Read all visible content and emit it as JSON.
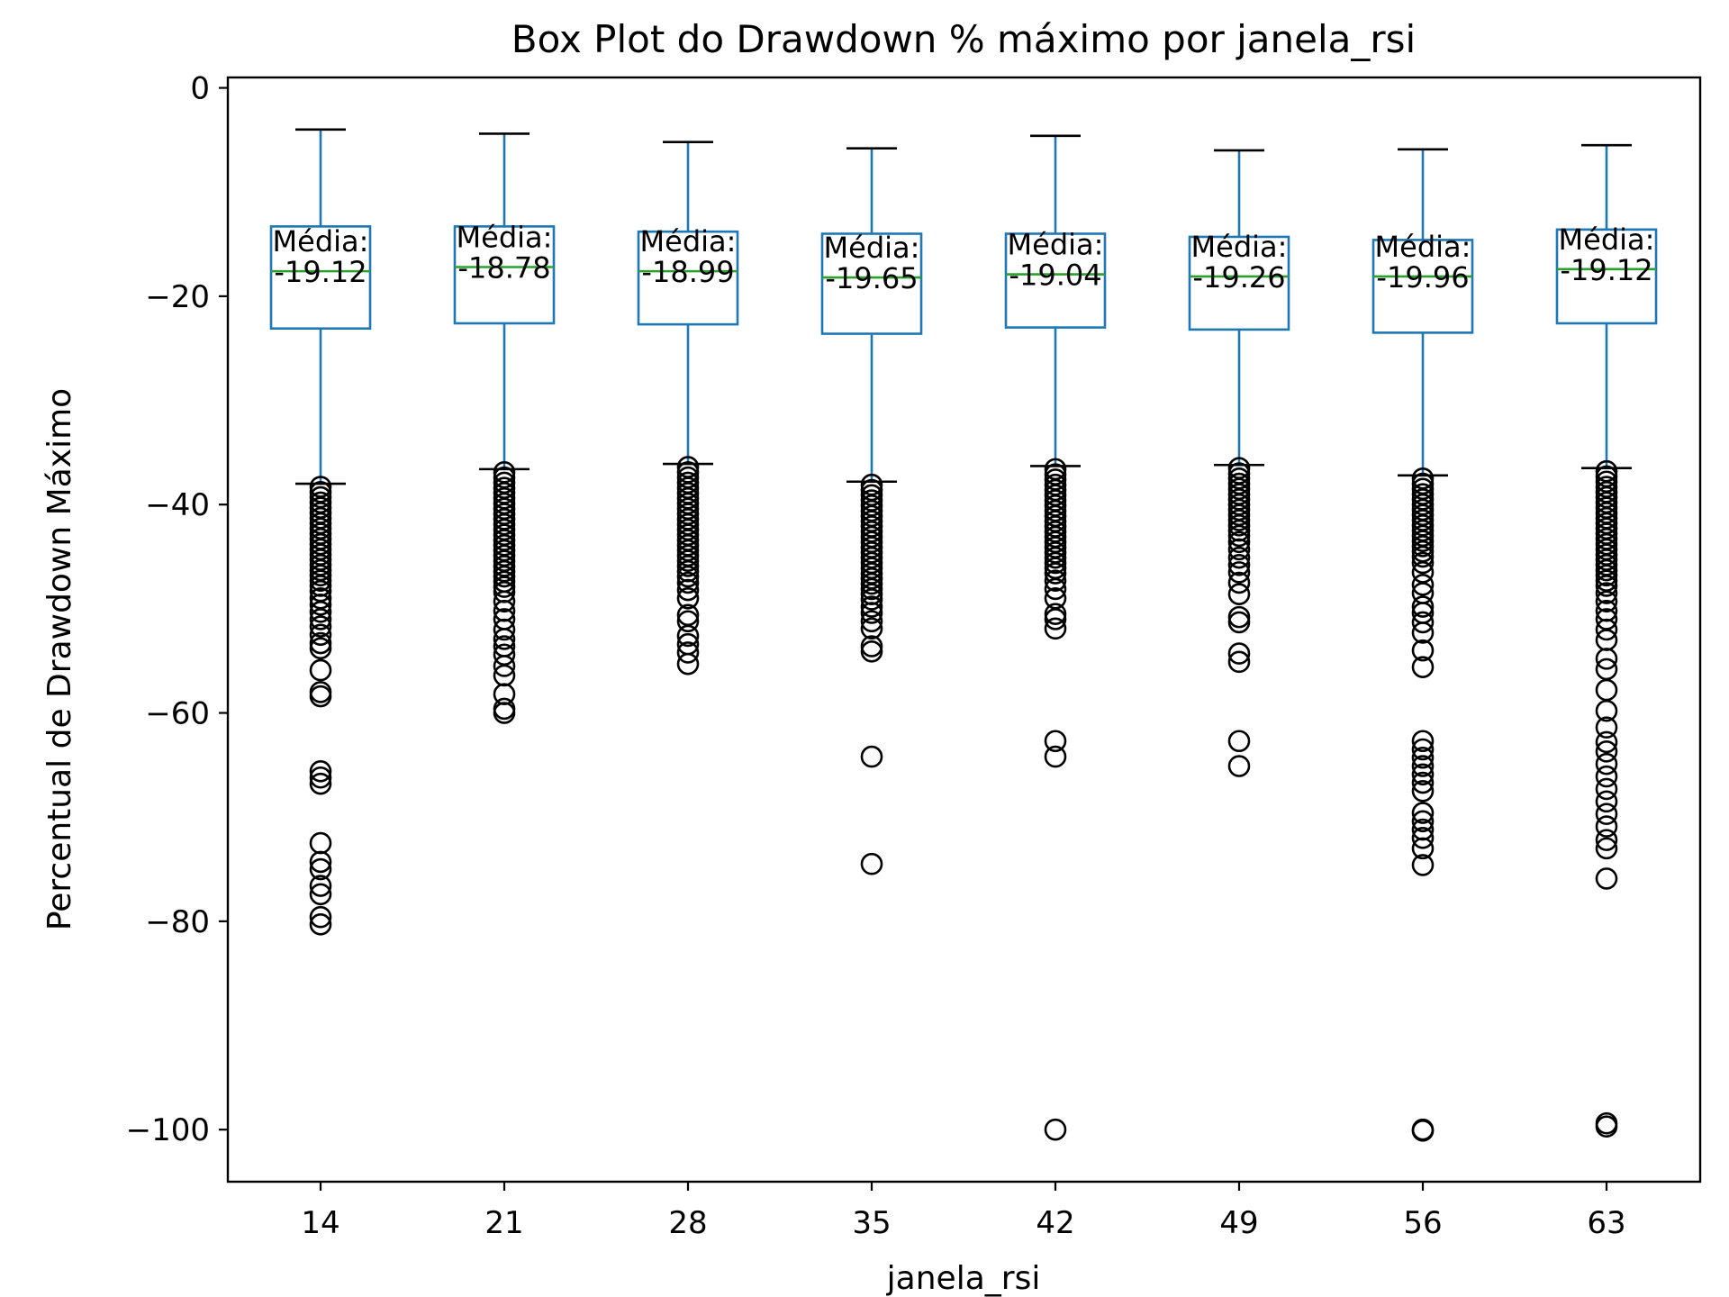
{
  "chart_data": {
    "type": "box",
    "title": "Box Plot do Drawdown % máximo por janela_rsi",
    "xlabel": "janela_rsi",
    "ylabel": "Percentual de Drawdown Máximo",
    "ylim": [
      -105,
      1
    ],
    "yticks": [
      0,
      -20,
      -40,
      -60,
      -80,
      -100
    ],
    "yticklabels": [
      "0",
      "−20",
      "−40",
      "−60",
      "−80",
      "−100"
    ],
    "grid": false,
    "categories": [
      "14",
      "21",
      "28",
      "35",
      "42",
      "49",
      "56",
      "63"
    ],
    "mean_prefix": "Média:",
    "colors": {
      "box": "#1f77b4",
      "median": "#2ca02c",
      "whisker_cap": "#000000",
      "flier": "#000000"
    },
    "boxes": [
      {
        "category": "14",
        "whisker_high": -4.0,
        "q3": -13.3,
        "median": -17.6,
        "q1": -23.1,
        "whisker_low": -38.0,
        "mean_label": "-19.12",
        "outliers": [
          -38.3,
          -38.8,
          -39.3,
          -39.8,
          -40.3,
          -40.8,
          -41.3,
          -41.8,
          -42.3,
          -42.8,
          -43.3,
          -43.8,
          -44.3,
          -44.8,
          -45.3,
          -45.8,
          -46.3,
          -46.8,
          -47.3,
          -47.8,
          -48.3,
          -49.0,
          -49.6,
          -50.3,
          -51.0,
          -51.7,
          -52.5,
          -53.3,
          -53.8,
          -55.9,
          -58.0,
          -58.4,
          -65.6,
          -66.2,
          -66.8,
          -72.5,
          -74.3,
          -75.0,
          -76.6,
          -77.4,
          -79.6,
          -80.3
        ]
      },
      {
        "category": "21",
        "whisker_high": -4.4,
        "q3": -13.3,
        "median": -17.2,
        "q1": -22.6,
        "whisker_low": -36.6,
        "mean_label": "-18.78",
        "outliers": [
          -36.9,
          -37.4,
          -37.9,
          -38.4,
          -38.9,
          -39.4,
          -39.9,
          -40.4,
          -40.9,
          -41.4,
          -41.9,
          -42.4,
          -42.9,
          -43.4,
          -43.9,
          -44.4,
          -44.9,
          -45.4,
          -45.9,
          -46.4,
          -46.9,
          -47.4,
          -47.9,
          -48.4,
          -49.3,
          -50.2,
          -51.0,
          -52.0,
          -52.9,
          -53.6,
          -54.4,
          -55.5,
          -56.4,
          -58.2,
          -59.6,
          -60.0
        ]
      },
      {
        "category": "28",
        "whisker_high": -5.2,
        "q3": -13.8,
        "median": -17.6,
        "q1": -22.7,
        "whisker_low": -36.1,
        "mean_label": "-18.99",
        "outliers": [
          -36.4,
          -36.9,
          -37.4,
          -37.9,
          -38.4,
          -38.9,
          -39.4,
          -39.9,
          -40.4,
          -40.9,
          -41.4,
          -41.9,
          -42.4,
          -42.9,
          -43.4,
          -43.9,
          -44.4,
          -44.9,
          -45.4,
          -45.9,
          -46.4,
          -46.9,
          -47.5,
          -48.2,
          -49.0,
          -50.6,
          -51.2,
          -52.6,
          -53.4,
          -54.2,
          -55.3
        ]
      },
      {
        "category": "35",
        "whisker_high": -5.8,
        "q3": -14.0,
        "median": -18.2,
        "q1": -23.6,
        "whisker_low": -37.8,
        "mean_label": "-19.65",
        "outliers": [
          -38.1,
          -38.6,
          -39.1,
          -39.6,
          -40.1,
          -40.6,
          -41.1,
          -41.6,
          -42.1,
          -42.6,
          -43.1,
          -43.6,
          -44.1,
          -44.6,
          -45.1,
          -45.6,
          -46.1,
          -46.6,
          -47.1,
          -47.6,
          -48.1,
          -48.6,
          -49.1,
          -49.8,
          -50.4,
          -51.2,
          -51.9,
          -53.6,
          -54.1,
          -64.2,
          -74.5
        ]
      },
      {
        "category": "42",
        "whisker_high": -4.6,
        "q3": -14.0,
        "median": -17.9,
        "q1": -23.0,
        "whisker_low": -36.3,
        "mean_label": "-19.04",
        "outliers": [
          -36.6,
          -37.1,
          -37.6,
          -38.1,
          -38.6,
          -39.1,
          -39.6,
          -40.1,
          -40.6,
          -41.1,
          -41.6,
          -42.1,
          -42.6,
          -43.1,
          -43.6,
          -44.1,
          -44.6,
          -45.1,
          -45.6,
          -46.1,
          -46.6,
          -47.3,
          -48.1,
          -49.0,
          -50.5,
          -51.0,
          -51.9,
          -62.7,
          -64.2,
          -100.0
        ]
      },
      {
        "category": "49",
        "whisker_high": -6.0,
        "q3": -14.3,
        "median": -18.1,
        "q1": -23.2,
        "whisker_low": -36.2,
        "mean_label": "-19.26",
        "outliers": [
          -36.5,
          -37.0,
          -37.5,
          -38.0,
          -38.5,
          -39.0,
          -39.5,
          -40.0,
          -40.5,
          -41.0,
          -41.5,
          -42.0,
          -42.5,
          -43.0,
          -43.6,
          -44.3,
          -45.1,
          -45.8,
          -46.5,
          -47.5,
          -48.6,
          -50.8,
          -51.3,
          -54.3,
          -55.1,
          -62.7,
          -65.1
        ]
      },
      {
        "category": "56",
        "whisker_high": -5.9,
        "q3": -14.6,
        "median": -18.1,
        "q1": -23.5,
        "whisker_low": -37.2,
        "mean_label": "-19.96",
        "outliers": [
          -37.5,
          -38.0,
          -38.5,
          -39.0,
          -39.5,
          -40.0,
          -40.5,
          -41.0,
          -41.5,
          -42.0,
          -42.5,
          -43.0,
          -43.5,
          -44.0,
          -44.5,
          -45.0,
          -45.6,
          -46.5,
          -47.7,
          -48.5,
          -49.8,
          -50.4,
          -51.3,
          -52.3,
          -54.0,
          -55.6,
          -62.7,
          -63.5,
          -64.3,
          -65.1,
          -65.9,
          -66.7,
          -67.5,
          -69.6,
          -70.4,
          -71.2,
          -72.0,
          -73.0,
          -74.6,
          -100.0,
          -100.1
        ]
      },
      {
        "category": "63",
        "whisker_high": -5.5,
        "q3": -13.6,
        "median": -17.4,
        "q1": -22.6,
        "whisker_low": -36.5,
        "mean_label": "-19.12",
        "outliers": [
          -36.8,
          -37.3,
          -37.8,
          -38.3,
          -38.8,
          -39.3,
          -39.8,
          -40.3,
          -40.8,
          -41.3,
          -41.8,
          -42.3,
          -42.8,
          -43.3,
          -43.8,
          -44.3,
          -44.8,
          -45.3,
          -45.8,
          -46.3,
          -46.8,
          -47.3,
          -47.8,
          -48.5,
          -49.3,
          -50.2,
          -51.0,
          -52.0,
          -53.0,
          -54.8,
          -55.8,
          -57.8,
          -59.8,
          -61.4,
          -62.8,
          -63.7,
          -64.9,
          -66.1,
          -67.3,
          -68.5,
          -69.7,
          -70.9,
          -72.2,
          -73.0,
          -75.9,
          -99.4,
          -99.7
        ]
      }
    ]
  }
}
